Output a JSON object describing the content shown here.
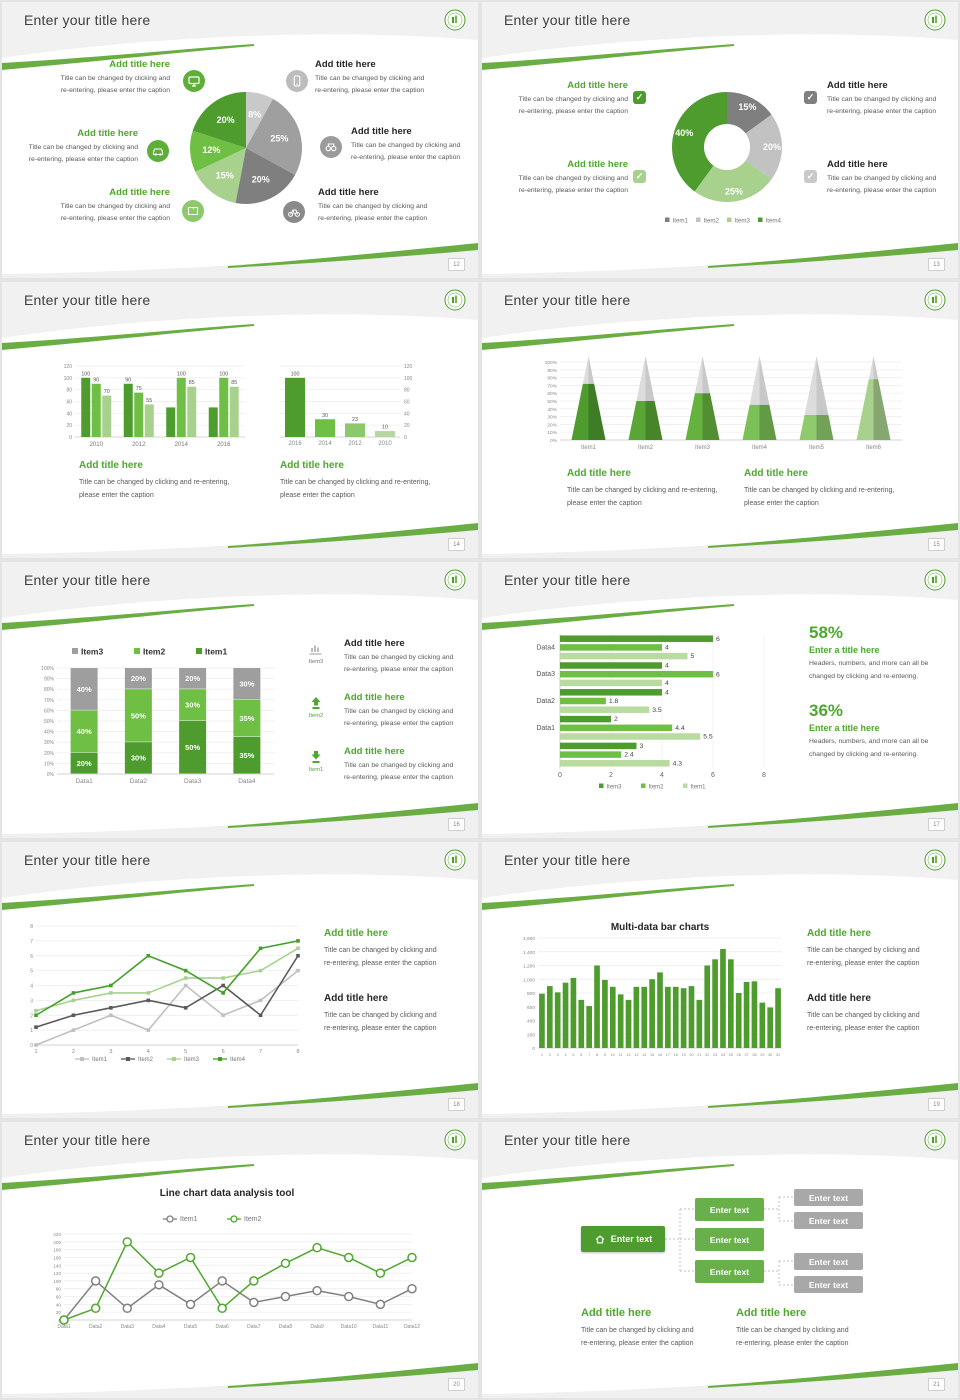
{
  "theme": {
    "green_dark": "#4e9b2e",
    "green_mid": "#6fbf44",
    "green_light": "#a9d18e",
    "green_lighter": "#c5e0b4",
    "green_title": "#4ea72e",
    "gray_dark": "#7f7f7f",
    "gray_mid": "#9e9e9e",
    "gray_light": "#bfbfbf",
    "stripe": "#6aae43"
  },
  "common": {
    "slide_title": "Enter your title here",
    "add_title": "Add title here",
    "cap1": "Title can be changed by clicking and",
    "cap2": "re-entering, please enter the caption",
    "capw1": "Title can be changed by clicking and re-entering,",
    "capw2": "please enter the caption"
  },
  "slides": [
    {
      "page": "12",
      "icons": [
        "monitor",
        "smartphone",
        "car",
        "binoculars",
        "book",
        "bicycle"
      ]
    },
    {
      "page": "13",
      "icons": [
        "checkbox-green",
        "checkbox-dark-gray",
        "checkbox-light-green",
        "checkbox-light-gray"
      ]
    },
    {
      "page": "14"
    },
    {
      "page": "15"
    },
    {
      "page": "16",
      "callouts": [
        {
          "icon_label": "Item3"
        },
        {
          "icon_label": "Item2"
        },
        {
          "icon_label": "Item1"
        }
      ]
    },
    {
      "page": "17",
      "stats": [
        {
          "pct": "58%",
          "title": "Enter a title here",
          "cap1": "Headers, numbers, and more can all be",
          "cap2": "changed by clicking and re-entering."
        },
        {
          "pct": "36%",
          "title": "Enter a title here",
          "cap1": "Headers, numbers, and more can all be",
          "cap2": "changed by clicking and re-entering."
        }
      ]
    },
    {
      "page": "18"
    },
    {
      "page": "19"
    },
    {
      "page": "20"
    },
    {
      "page": "21",
      "diagram": {
        "root": "Enter text",
        "mid": [
          "Enter text",
          "Enter text",
          "Enter text"
        ],
        "leaf": [
          "Enter text",
          "Enter text",
          "Enter text",
          "Enter text"
        ]
      }
    }
  ],
  "chart_data": [
    {
      "type": "pie",
      "title": "",
      "slices": [
        {
          "value": 8,
          "color": "#c9c9c9"
        },
        {
          "value": 25,
          "color": "#9f9f9f"
        },
        {
          "value": 20,
          "color": "#7f7f7f"
        },
        {
          "value": 15,
          "color": "#a9d18e"
        },
        {
          "value": 12,
          "color": "#6fbf44"
        },
        {
          "value": 20,
          "color": "#4e9b2e"
        }
      ],
      "label_suffix": "%"
    },
    {
      "type": "pie",
      "subtype": "donut",
      "slices": [
        {
          "value": 15,
          "color": "#7f7f7f"
        },
        {
          "value": 20,
          "color": "#c2c2c2"
        },
        {
          "value": 25,
          "color": "#a9d18e"
        },
        {
          "value": 40,
          "color": "#4e9b2e"
        }
      ],
      "label_suffix": "%",
      "legend": [
        {
          "label": "Item1",
          "color": "#7f7f7f"
        },
        {
          "label": "Item2",
          "color": "#c2c2c2"
        },
        {
          "label": "Item3",
          "color": "#a9d18e"
        },
        {
          "label": "Item4",
          "color": "#4e9b2e"
        }
      ],
      "legend_position": "bottom"
    },
    {
      "type": "bar",
      "subtype": "grouped",
      "categories": [
        "2010",
        "2012",
        "2014",
        "2016"
      ],
      "ylim": [
        0,
        120
      ],
      "ystep": 20,
      "series": [
        {
          "name": "series1",
          "color": "#4e9b2e",
          "values": [
            100,
            90,
            50,
            50
          ],
          "labels": [
            "100",
            "90",
            "",
            ""
          ]
        },
        {
          "name": "series2",
          "color": "#6fbf44",
          "values": [
            90,
            75,
            100,
            100
          ],
          "labels": [
            "90",
            "75",
            "100",
            "100"
          ]
        },
        {
          "name": "series3",
          "color": "#a9d18e",
          "values": [
            70,
            55,
            85,
            85
          ],
          "labels": [
            "70",
            "55",
            "85",
            "85"
          ]
        }
      ]
    },
    {
      "type": "bar",
      "subtype": "single",
      "categories": [
        "2016",
        "2014",
        "2012",
        "2010"
      ],
      "ylim": [
        0,
        120
      ],
      "ystep": 20,
      "values": [
        100,
        30,
        23,
        10
      ],
      "labels": [
        "100",
        "30",
        "23",
        "10"
      ],
      "colors": [
        "#4e9b2e",
        "#6fbf44",
        "#8cc96c",
        "#b6d7a0"
      ],
      "axis_side": "right"
    },
    {
      "type": "bar",
      "subtype": "pyramid",
      "ylim": [
        0,
        100
      ],
      "ystep": 10,
      "items": [
        {
          "label": "Item1",
          "fill_pct": 72,
          "color": "#4e9b2e"
        },
        {
          "label": "Item2",
          "fill_pct": 50,
          "color": "#59a636"
        },
        {
          "label": "Item3",
          "fill_pct": 60,
          "color": "#66b23e"
        },
        {
          "label": "Item4",
          "fill_pct": 45,
          "color": "#7cc158"
        },
        {
          "label": "Item5",
          "fill_pct": 32,
          "color": "#8eca6e"
        },
        {
          "label": "Item6",
          "fill_pct": 78,
          "color": "#a9d18e"
        }
      ]
    },
    {
      "type": "bar",
      "subtype": "stacked_pct",
      "categories": [
        "Data1",
        "Data2",
        "Data3",
        "Data4"
      ],
      "ylim": [
        0,
        100
      ],
      "ystep": 10,
      "series": [
        {
          "name": "Item1",
          "color": "#4e9b2e",
          "values": [
            20,
            30,
            50,
            35
          ]
        },
        {
          "name": "Item2",
          "color": "#6fbf44",
          "values": [
            40,
            50,
            30,
            35
          ]
        },
        {
          "name": "Item3",
          "color": "#9e9e9e",
          "values": [
            40,
            20,
            20,
            30
          ]
        }
      ],
      "legend": [
        {
          "label": "Item3",
          "color": "#9e9e9e"
        },
        {
          "label": "Item2",
          "color": "#6fbf44"
        },
        {
          "label": "Item1",
          "color": "#4e9b2e"
        }
      ],
      "legend_position": "top"
    },
    {
      "type": "bar",
      "subtype": "horizontal_grouped",
      "groups": [
        "Data4",
        "Data3",
        "Data2",
        "Data1",
        ""
      ],
      "xlim": [
        0,
        8
      ],
      "xstep": 2,
      "values": [
        [
          6,
          4,
          5
        ],
        [
          4,
          6,
          4
        ],
        [
          4,
          1.8,
          3.5
        ],
        [
          2,
          4.4,
          5.5
        ],
        [
          3,
          2.4,
          4.3
        ]
      ],
      "bar_colors": [
        "#4e9b2e",
        "#6fbf44",
        "#b9dba1"
      ],
      "legend": [
        {
          "label": "Item3",
          "color": "#4e9b2e"
        },
        {
          "label": "Item2",
          "color": "#6fbf44"
        },
        {
          "label": "Item1",
          "color": "#b9dba1"
        }
      ],
      "legend_position": "bottom"
    },
    {
      "type": "line",
      "x": [
        1,
        2,
        3,
        4,
        5,
        6,
        7,
        8
      ],
      "ylim": [
        0,
        8
      ],
      "ystep": 1,
      "series": [
        {
          "name": "Item1",
          "color": "#c0c0c0",
          "values": [
            0,
            1,
            2,
            1,
            4,
            2,
            3,
            5
          ]
        },
        {
          "name": "Item2",
          "color": "#5a5a5a",
          "values": [
            1.2,
            2,
            2.5,
            3,
            2.5,
            4,
            2,
            6
          ]
        },
        {
          "name": "Item3",
          "color": "#a9d18e",
          "values": [
            2.3,
            3,
            3.5,
            3.5,
            4.5,
            4.5,
            5,
            6.5
          ]
        },
        {
          "name": "Item4",
          "color": "#44a02a",
          "values": [
            2,
            3.5,
            4,
            6,
            5,
            3.5,
            6.5,
            7
          ]
        }
      ],
      "legend_position": "bottom"
    },
    {
      "type": "bar",
      "subtype": "single",
      "title": "Multi-data bar charts",
      "color": "#4e9b2e",
      "ylim": [
        0,
        1600
      ],
      "ystep": 200,
      "yticks": [
        "0",
        "200",
        "400",
        "600",
        "800",
        "1,000",
        "1,200",
        "1,400",
        "1,600"
      ],
      "categories": [
        "1",
        "2",
        "3",
        "4",
        "5",
        "6",
        "7",
        "8",
        "9",
        "10",
        "11",
        "12",
        "13",
        "14",
        "15",
        "16",
        "17",
        "18",
        "19",
        "20",
        "21",
        "22",
        "23",
        "24",
        "25",
        "26",
        "27",
        "28",
        "29",
        "30",
        "31"
      ],
      "values": [
        790,
        900,
        810,
        950,
        1020,
        700,
        610,
        1200,
        990,
        890,
        780,
        700,
        890,
        890,
        1000,
        1100,
        890,
        890,
        870,
        900,
        700,
        1200,
        1290,
        1440,
        1290,
        800,
        960,
        970,
        660,
        590,
        870
      ]
    },
    {
      "type": "line",
      "title": "Line chart data analysis tool",
      "categories": [
        "Data1",
        "Data2",
        "Data3",
        "Data4",
        "Data5",
        "Data6",
        "Data7",
        "Data8",
        "Data9",
        "Data10",
        "Data11",
        "Data12"
      ],
      "ylim": [
        0,
        220
      ],
      "ystep": 20,
      "series": [
        {
          "name": "Item1",
          "color": "#808080",
          "values": [
            0,
            100,
            30,
            90,
            40,
            100,
            45,
            60,
            75,
            60,
            40,
            80
          ]
        },
        {
          "name": "Item2",
          "color": "#4ea72e",
          "values": [
            0,
            30,
            200,
            120,
            160,
            30,
            100,
            145,
            185,
            160,
            120,
            160
          ]
        }
      ],
      "legend_position": "top"
    }
  ]
}
